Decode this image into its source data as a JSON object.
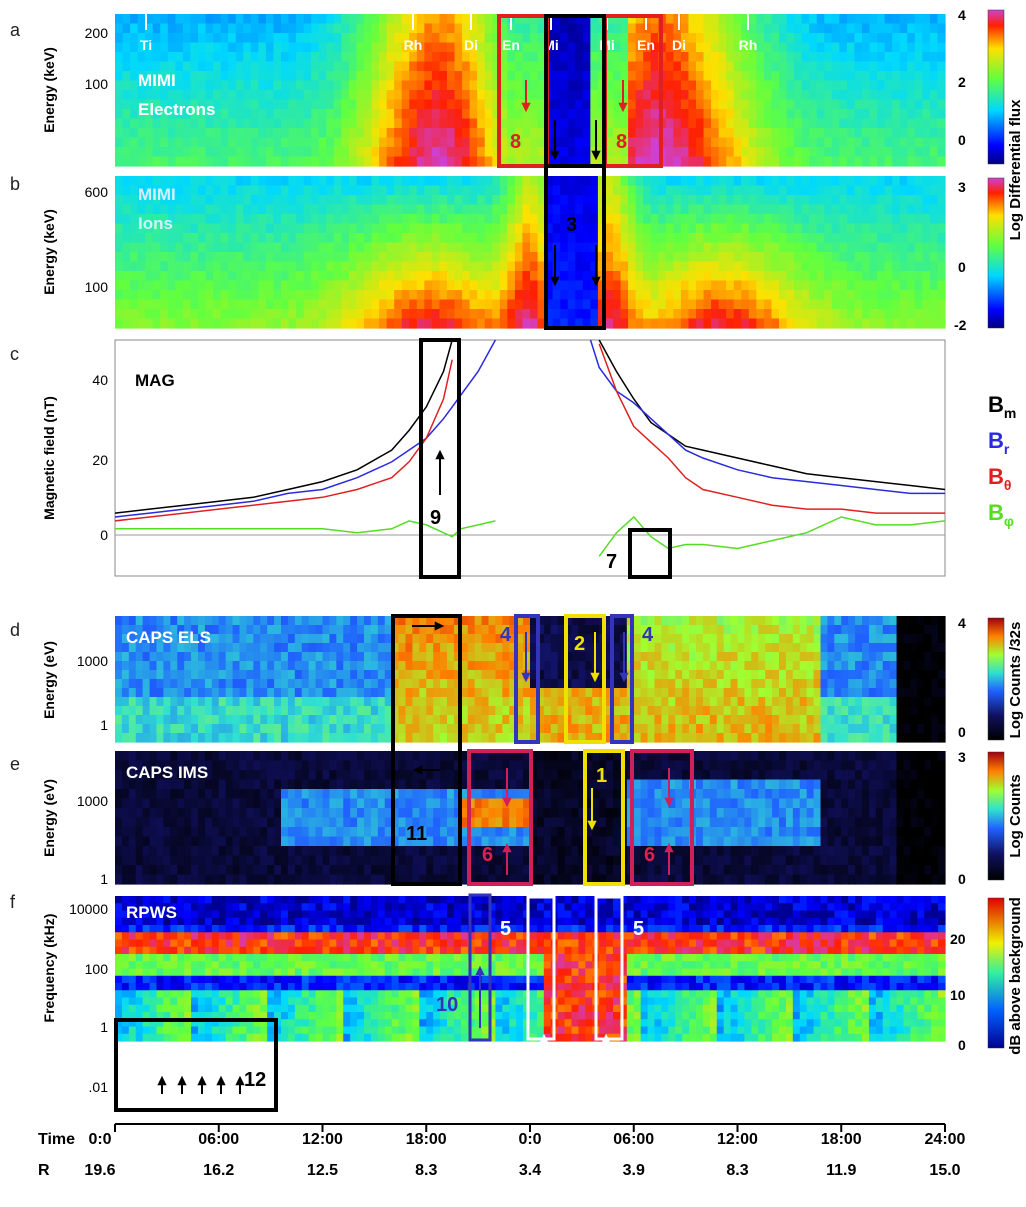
{
  "colors": {
    "bm": "#000000",
    "br": "#2a2ae0",
    "btheta": "#e02020",
    "bphi": "#55dd22",
    "red_box": "#e02020",
    "black_box": "#000000",
    "blue_box": "#3333bb",
    "yellow_box": "#f0e000",
    "magenta_box": "#d0205a",
    "white_box": "#ffffff"
  },
  "chart_data": [
    {
      "type": "heatmap",
      "panel": "a",
      "labels": [
        "MIMI",
        "Electrons"
      ],
      "ylabel": "Energy (keV)",
      "y_ticks": [
        "200",
        "100"
      ],
      "colorbar": {
        "ticks": [
          "4",
          "2",
          "0"
        ]
      },
      "region_labels": [
        "Ti",
        "Rh",
        "Di",
        "En",
        "Mi",
        "Mi",
        "En",
        "Di",
        "Rh"
      ],
      "annotations": [
        "8",
        "8"
      ]
    },
    {
      "type": "heatmap",
      "panel": "b",
      "labels": [
        "MIMI",
        "Ions"
      ],
      "ylabel": "Energy (keV)",
      "y_ticks": [
        "600",
        "100"
      ],
      "colorbar": {
        "ticks": [
          "3",
          "0",
          "-2"
        ]
      },
      "shared_colorbar_label": "Log Differential flux",
      "annotations": [
        "3"
      ]
    },
    {
      "type": "line",
      "panel": "c",
      "label": "MAG",
      "ylabel": "Magnetic field (nT)",
      "y_ticks": [
        "40",
        "20",
        "0"
      ],
      "ylim": [
        -10,
        50
      ],
      "x_hours": [
        0,
        2,
        4,
        6,
        8,
        10,
        12,
        14,
        16,
        17,
        18,
        19,
        19.5,
        20,
        21,
        22,
        23,
        24,
        25,
        26,
        27,
        27.5,
        28,
        29,
        30,
        31,
        32,
        33,
        34,
        36,
        38,
        40,
        42,
        44,
        46,
        48
      ],
      "series": [
        {
          "name": "Bm",
          "values": [
            6,
            7,
            8,
            9,
            10,
            12,
            14,
            17,
            22,
            27,
            33,
            42,
            50,
            null,
            null,
            null,
            null,
            null,
            null,
            null,
            null,
            null,
            50,
            42,
            35,
            29,
            26,
            23,
            22,
            20,
            18,
            16,
            15,
            14,
            13,
            12
          ]
        },
        {
          "name": "Br",
          "values": [
            5,
            6,
            7,
            8,
            9,
            11,
            12,
            15,
            19,
            22,
            25,
            30,
            33,
            36,
            42,
            50,
            null,
            null,
            null,
            null,
            null,
            50,
            43,
            37,
            34,
            30,
            26,
            22,
            20,
            17,
            15,
            14,
            13,
            12,
            11,
            11
          ]
        },
        {
          "name": "Bθ",
          "values": [
            4,
            5,
            6,
            7,
            8,
            9,
            10,
            12,
            15,
            19,
            25,
            35,
            45,
            null,
            null,
            null,
            null,
            null,
            null,
            null,
            null,
            null,
            49,
            37,
            28,
            24,
            20,
            15,
            12,
            10,
            8,
            7,
            7,
            6,
            6,
            6
          ]
        },
        {
          "name": "Bφ",
          "values": [
            2,
            2,
            2,
            2,
            2,
            2,
            2,
            1,
            2,
            4,
            3,
            1,
            0,
            2,
            3,
            4,
            null,
            null,
            null,
            null,
            null,
            null,
            -5,
            1,
            5,
            0,
            -3,
            -2,
            -2,
            -3,
            -1,
            1,
            5,
            3,
            3,
            4
          ]
        }
      ],
      "legend": [
        "B",
        "B",
        "B",
        "B"
      ],
      "legend_subscripts": [
        "m",
        "r",
        "θ",
        "φ"
      ],
      "annotations": [
        "9",
        "7"
      ]
    },
    {
      "type": "heatmap",
      "panel": "d",
      "label": "CAPS ELS",
      "ylabel": "Energy (eV)",
      "y_ticks": [
        "1000",
        "1"
      ],
      "colorbar": {
        "label": "Log Counts /32s",
        "ticks": [
          "4",
          "0"
        ]
      },
      "annotations": [
        "4",
        "2",
        "4"
      ]
    },
    {
      "type": "heatmap",
      "panel": "e",
      "label": "CAPS IMS",
      "ylabel": "Energy (eV)",
      "y_ticks": [
        "1000",
        "1"
      ],
      "colorbar": {
        "label": "Log Counts",
        "ticks": [
          "3",
          "0"
        ]
      },
      "annotations": [
        "11",
        "6",
        "1",
        "6"
      ]
    },
    {
      "type": "heatmap",
      "panel": "f",
      "label": "RPWS",
      "ylabel": "Frequency (kHz)",
      "y_ticks": [
        "10000",
        "100",
        "1",
        ".01"
      ],
      "colorbar": {
        "label": "dB above background",
        "ticks": [
          "20",
          "10",
          "0"
        ]
      },
      "annotations": [
        "5",
        "5",
        "10",
        "12"
      ]
    }
  ],
  "axis": {
    "time_label": "Time",
    "r_label": "R",
    "time_ticks": [
      "0:0",
      "06:00",
      "12:00",
      "18:00",
      "0:0",
      "06:00",
      "12:00",
      "18:00",
      "24:00"
    ],
    "r_values": [
      "19.6",
      "16.2",
      "12.5",
      "8.3",
      "3.4",
      "3.9",
      "8.3",
      "11.9",
      "15.0"
    ]
  },
  "panel_letters": [
    "a",
    "b",
    "c",
    "d",
    "e",
    "f"
  ]
}
